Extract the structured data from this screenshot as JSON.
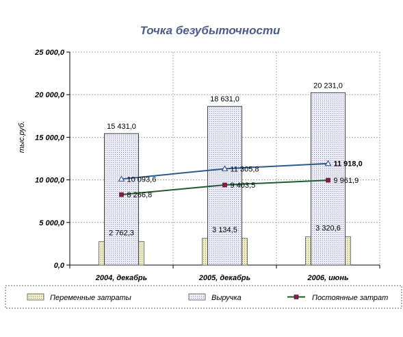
{
  "chart_data": {
    "type": "bar",
    "title": "Точка безубыточности",
    "ylabel": "тыс.руб.",
    "xlabel": "",
    "categories": [
      "2004, декабрь",
      "2005, декабрь",
      "2006, июнь"
    ],
    "ylim": [
      0,
      25000
    ],
    "yticks": [
      0,
      5000,
      10000,
      15000,
      20000,
      25000
    ],
    "ytick_labels": [
      "0,0",
      "5 000,0",
      "10 000,0",
      "15 000,0",
      "20 000,0",
      "25 000,0"
    ],
    "grid": true,
    "legend_position": "bottom",
    "bar_series": [
      {
        "name": "Переменные затраты",
        "values": [
          2762.3,
          3134.5,
          3320.6
        ],
        "labels": [
          "2 762,3",
          "3 134,5",
          "3 320,6"
        ],
        "color": "#e8e4b8",
        "pattern": "dots"
      },
      {
        "name": "Выручка",
        "values": [
          15431.0,
          18631.0,
          20231.0
        ],
        "labels": [
          "15 431,0",
          "18 631,0",
          "20 231,0"
        ],
        "color": "#e6e6f5",
        "pattern": "dots"
      }
    ],
    "line_series": [
      {
        "name": "",
        "values": [
          10093.6,
          11305.8,
          11918.0
        ],
        "labels": [
          "10 093,6",
          "11 305,8",
          "11 918,0"
        ],
        "color": "#2b5a8c",
        "marker": "triangle"
      },
      {
        "name": "Постоянные затрат",
        "values": [
          8266.8,
          9403.5,
          9961.9
        ],
        "labels": [
          "8 266,8",
          "9 403,5",
          "9 961,9"
        ],
        "color": "#1f5a2e",
        "marker": "square",
        "marker_color": "#8a1a4a"
      }
    ]
  }
}
